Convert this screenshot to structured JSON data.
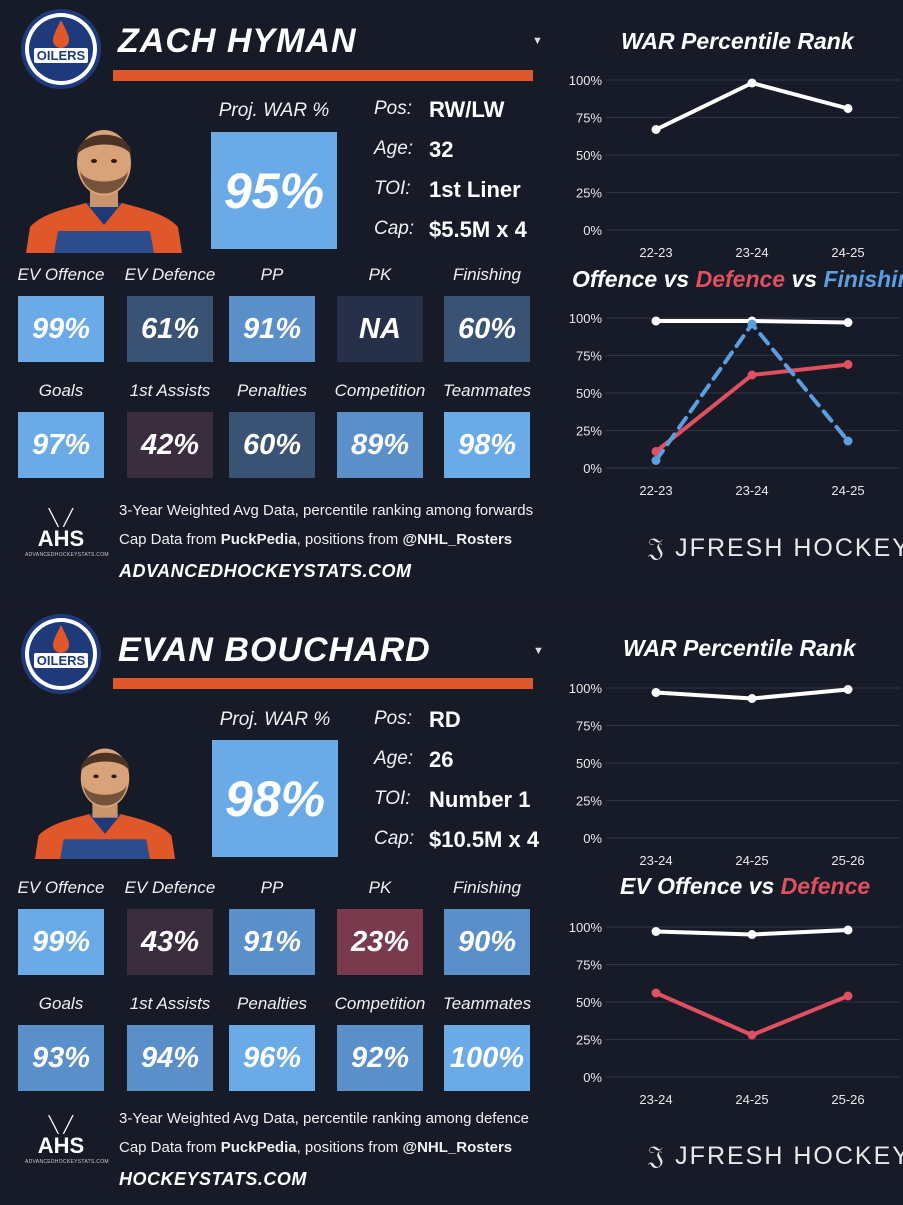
{
  "colors": {
    "orange": "#e0582a",
    "red_line": "#e0505f",
    "blue_line": "#5b9fe0",
    "background": "#171b28"
  },
  "cards": [
    {
      "name": "ZACH HYMAN",
      "proj_war_label": "Proj. WAR %",
      "proj_war": "95%",
      "info": [
        {
          "label": "Pos:",
          "value": "RW/LW"
        },
        {
          "label": "Age:",
          "value": "32"
        },
        {
          "label": "TOI:",
          "value": "1st Liner"
        },
        {
          "label": "Cap:",
          "value": "$5.5M x 4"
        }
      ],
      "tiles": [
        {
          "label": "EV Offence",
          "value": "99%",
          "pct": 99
        },
        {
          "label": "EV Defence",
          "value": "61%",
          "pct": 61
        },
        {
          "label": "PP",
          "value": "91%",
          "pct": 91
        },
        {
          "label": "PK",
          "value": "NA",
          "pct": null
        },
        {
          "label": "Finishing",
          "value": "60%",
          "pct": 60
        },
        {
          "label": "Goals",
          "value": "97%",
          "pct": 97
        },
        {
          "label": "1st Assists",
          "value": "42%",
          "pct": 42
        },
        {
          "label": "Penalties",
          "value": "60%",
          "pct": 60
        },
        {
          "label": "Competition",
          "value": "89%",
          "pct": 89
        },
        {
          "label": "Teammates",
          "value": "98%",
          "pct": 98
        }
      ],
      "footer_line1": "3-Year Weighted Avg Data, percentile ranking among forwards",
      "footer_line2_prefix": "Cap Data from ",
      "footer_line2_bold1": "PuckPedia",
      "footer_line2_mid": ", positions from ",
      "footer_line2_bold2": "@NHL_Rosters",
      "url": "ADVANCEDHOCKEYSTATS.COM",
      "ahs_logo": "AHS",
      "ahs_logo_sub": "ADVANCEDHOCKEYSTATS.COM",
      "brand": "JFRESH HOCKEY"
    },
    {
      "name": "EVAN BOUCHARD",
      "proj_war_label": "Proj. WAR %",
      "proj_war": "98%",
      "info": [
        {
          "label": "Pos:",
          "value": "RD"
        },
        {
          "label": "Age:",
          "value": "26"
        },
        {
          "label": "TOI:",
          "value": "Number 1"
        },
        {
          "label": "Cap:",
          "value": "$10.5M x 4"
        }
      ],
      "tiles": [
        {
          "label": "EV Offence",
          "value": "99%",
          "pct": 99
        },
        {
          "label": "EV Defence",
          "value": "43%",
          "pct": 43
        },
        {
          "label": "PP",
          "value": "91%",
          "pct": 91
        },
        {
          "label": "PK",
          "value": "23%",
          "pct": 23
        },
        {
          "label": "Finishing",
          "value": "90%",
          "pct": 90
        },
        {
          "label": "Goals",
          "value": "93%",
          "pct": 93
        },
        {
          "label": "1st Assists",
          "value": "94%",
          "pct": 94
        },
        {
          "label": "Penalties",
          "value": "96%",
          "pct": 96
        },
        {
          "label": "Competition",
          "value": "92%",
          "pct": 92
        },
        {
          "label": "Teammates",
          "value": "100%",
          "pct": 100
        }
      ],
      "footer_line1": "3-Year Weighted Avg Data, percentile ranking among defence",
      "footer_line2_prefix": "Cap Data from ",
      "footer_line2_bold1": "PuckPedia",
      "footer_line2_mid": ", positions from ",
      "footer_line2_bold2": "@NHL_Rosters",
      "url": "HOCKEYSTATS.COM",
      "ahs_logo": "AHS",
      "ahs_logo_sub": "ADVANCEDHOCKEYSTATS.COM",
      "brand": "JFRESH HOCKEY"
    }
  ],
  "chart_data": [
    {
      "type": "line",
      "title": "WAR Percentile Rank",
      "categories": [
        "22-23",
        "23-24",
        "24-25"
      ],
      "yticks": [
        "100%",
        "75%",
        "50%",
        "25%",
        "0%"
      ],
      "ylim": [
        0,
        100
      ],
      "series": [
        {
          "color": "#ffffff",
          "dashed": false,
          "values": [
            67,
            98,
            81
          ]
        }
      ]
    },
    {
      "type": "line",
      "title_parts": [
        {
          "text": "Offence",
          "color": "#ffffff"
        },
        {
          "text": " vs ",
          "color": "#ffffff"
        },
        {
          "text": "Defence",
          "color": "#e0505f"
        },
        {
          "text": " vs ",
          "color": "#ffffff"
        },
        {
          "text": "Finishing",
          "color": "#5b9fe0"
        }
      ],
      "categories": [
        "22-23",
        "23-24",
        "24-25"
      ],
      "yticks": [
        "100%",
        "75%",
        "50%",
        "25%",
        "0%"
      ],
      "ylim": [
        0,
        100
      ],
      "series": [
        {
          "color": "#ffffff",
          "dashed": false,
          "values": [
            98,
            98,
            97
          ]
        },
        {
          "color": "#e0505f",
          "dashed": false,
          "values": [
            11,
            62,
            69
          ]
        },
        {
          "color": "#5b9fe0",
          "dashed": true,
          "values": [
            5,
            96,
            18
          ]
        }
      ]
    },
    {
      "type": "line",
      "title": "WAR Percentile Rank",
      "categories": [
        "23-24",
        "24-25",
        "25-26"
      ],
      "yticks": [
        "100%",
        "75%",
        "50%",
        "25%",
        "0%"
      ],
      "ylim": [
        0,
        100
      ],
      "series": [
        {
          "color": "#ffffff",
          "dashed": false,
          "values": [
            97,
            93,
            99
          ]
        }
      ]
    },
    {
      "type": "line",
      "title_parts": [
        {
          "text": "EV Offence",
          "color": "#ffffff"
        },
        {
          "text": " vs ",
          "color": "#ffffff"
        },
        {
          "text": "Defence",
          "color": "#e0505f"
        }
      ],
      "categories": [
        "23-24",
        "24-25",
        "25-26"
      ],
      "yticks": [
        "100%",
        "75%",
        "50%",
        "25%",
        "0%"
      ],
      "ylim": [
        0,
        100
      ],
      "series": [
        {
          "color": "#ffffff",
          "dashed": false,
          "values": [
            97,
            95,
            98
          ]
        },
        {
          "color": "#e0505f",
          "dashed": false,
          "values": [
            56,
            28,
            54
          ]
        }
      ]
    }
  ]
}
